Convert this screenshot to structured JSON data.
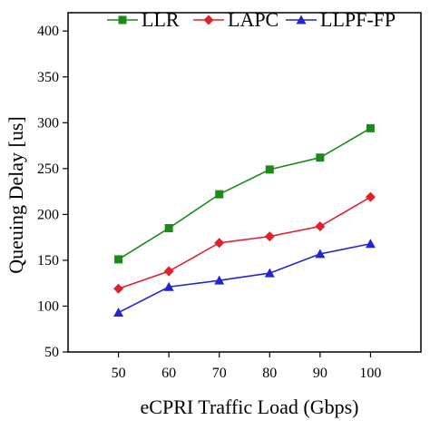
{
  "chart_data": {
    "type": "line",
    "title": "",
    "xlabel": "eCPRI Traffic Load (Gbps)",
    "ylabel": "Queuing Delay [us]",
    "x": [
      50,
      60,
      70,
      80,
      90,
      100
    ],
    "xlim": [
      40,
      110
    ],
    "ylim": [
      50,
      420
    ],
    "yticks": [
      50,
      100,
      150,
      200,
      250,
      300,
      350,
      400
    ],
    "xticks": [
      50,
      60,
      70,
      80,
      90,
      100
    ],
    "grid": false,
    "legend_position": "top",
    "series": [
      {
        "name": "LLR",
        "color": "#1a8a1a",
        "marker": "square",
        "values": [
          151,
          185,
          222,
          249,
          262,
          294
        ]
      },
      {
        "name": "LAPC",
        "color": "#e0202a",
        "marker": "diamond",
        "values": [
          119,
          138,
          169,
          176,
          187,
          219
        ]
      },
      {
        "name": "LLPF-FP",
        "color": "#2424d4",
        "marker": "triangle",
        "values": [
          93,
          121,
          128,
          136,
          157,
          168
        ]
      }
    ]
  }
}
